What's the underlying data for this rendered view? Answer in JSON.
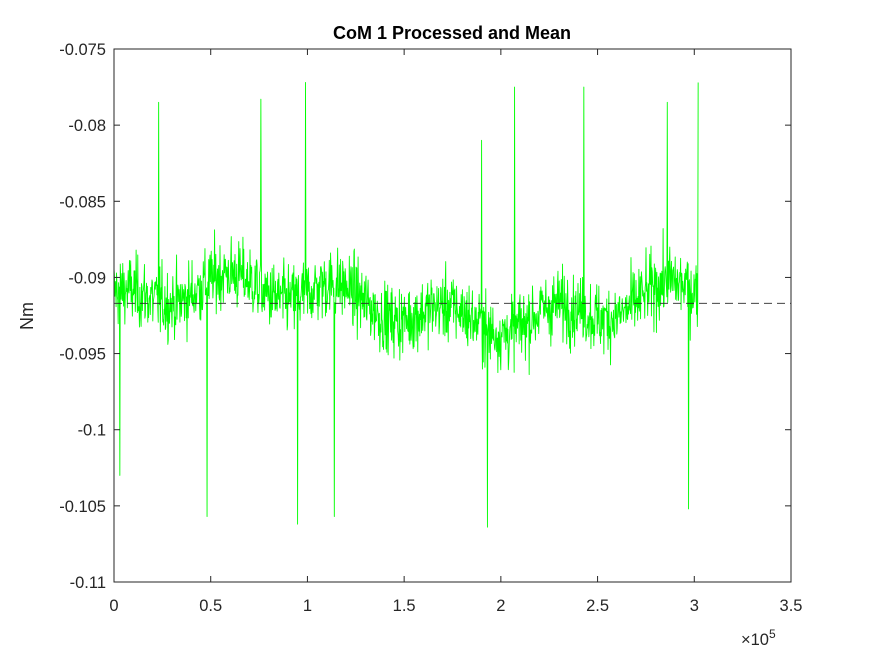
{
  "chart_data": {
    "type": "line",
    "title": "CoM 1 Processed and Mean",
    "xlabel": "",
    "ylabel": "Nm",
    "x_exponent_label": "×10",
    "x_exponent_power": "5",
    "xlim": [
      0,
      350000
    ],
    "ylim": [
      -0.11,
      -0.075
    ],
    "x_ticks": [
      0,
      50000,
      100000,
      150000,
      200000,
      250000,
      300000,
      350000
    ],
    "x_tick_labels": [
      "0",
      "0.5",
      "1",
      "1.5",
      "2",
      "2.5",
      "3",
      "3.5"
    ],
    "y_ticks": [
      -0.11,
      -0.105,
      -0.1,
      -0.095,
      -0.09,
      -0.085,
      -0.08,
      -0.075
    ],
    "y_tick_labels": [
      "-0.11",
      "-0.105",
      "-0.1",
      "-0.095",
      "-0.09",
      "-0.085",
      "-0.08",
      "-0.075"
    ],
    "grid": false,
    "series": [
      {
        "color": "#00ff00",
        "style": "solid",
        "x_range": [
          0,
          302000
        ],
        "summary": {
          "mean": -0.0917,
          "min": -0.1064,
          "max": -0.0772
        },
        "peaks": [
          {
            "x": 3000,
            "y": -0.082
          },
          {
            "x": 23000,
            "y": -0.0785
          },
          {
            "x": 76000,
            "y": -0.0783
          },
          {
            "x": 99000,
            "y": -0.0772
          },
          {
            "x": 190000,
            "y": -0.081
          },
          {
            "x": 207000,
            "y": -0.0775
          },
          {
            "x": 243000,
            "y": -0.0775
          },
          {
            "x": 286000,
            "y": -0.0785
          },
          {
            "x": 302000,
            "y": -0.0772
          }
        ],
        "troughs": [
          {
            "x": 3000,
            "y": -0.103
          },
          {
            "x": 48000,
            "y": -0.1057
          },
          {
            "x": 95000,
            "y": -0.1062
          },
          {
            "x": 114000,
            "y": -0.1057
          },
          {
            "x": 193000,
            "y": -0.1064
          },
          {
            "x": 297000,
            "y": -0.1052
          }
        ]
      },
      {
        "color": "#262626",
        "style": "dashed",
        "x": [
          0,
          350000
        ],
        "values": [
          -0.0917,
          -0.0917
        ]
      }
    ]
  }
}
